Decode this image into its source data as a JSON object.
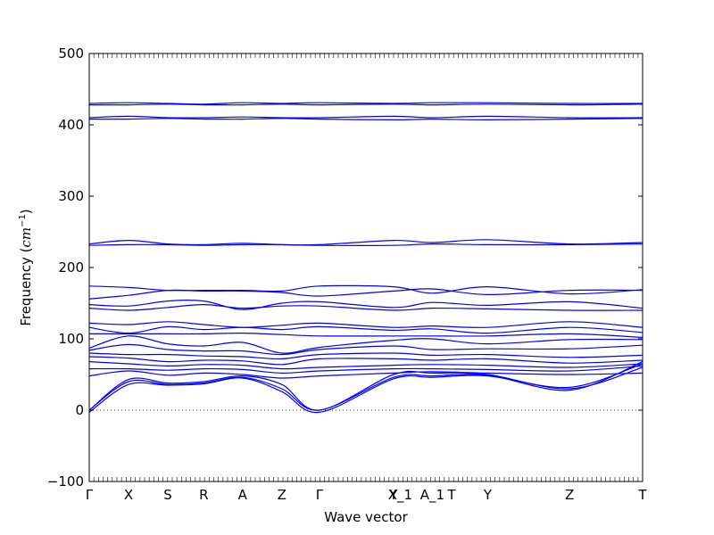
{
  "chart_data": {
    "type": "line",
    "title": "",
    "xlabel": "Wave vector",
    "ylabel": "Frequency (cm⁻¹)",
    "ylabel_main": "Frequency (",
    "ylabel_unit": "cm",
    "ylabel_exp": "−1",
    "ylabel_close": ")",
    "ylim": [
      -100,
      500
    ],
    "yticks": [
      -100,
      0,
      100,
      200,
      300,
      400,
      500
    ],
    "ytick_labels": [
      "−100",
      "0",
      "100",
      "200",
      "300",
      "400",
      "500"
    ],
    "xlim": [
      0,
      1
    ],
    "xticks": [
      {
        "pos": 0.0,
        "label": "Γ"
      },
      {
        "pos": 0.071,
        "label": "X"
      },
      {
        "pos": 0.142,
        "label": "S"
      },
      {
        "pos": 0.207,
        "label": "R"
      },
      {
        "pos": 0.277,
        "label": "A"
      },
      {
        "pos": 0.348,
        "label": "Z"
      },
      {
        "pos": 0.416,
        "label": "Γ"
      },
      {
        "pos": 0.55,
        "label": "Y"
      },
      {
        "pos": 0.562,
        "label": "X_1"
      },
      {
        "pos": 0.62,
        "label": "A_1"
      },
      {
        "pos": 0.655,
        "label": "T"
      },
      {
        "pos": 0.72,
        "label": "Y"
      },
      {
        "pos": 0.868,
        "label": "Z"
      },
      {
        "pos": 1.0,
        "label": "T"
      }
    ],
    "grid": false,
    "zero_line": true,
    "series_color": "#0000ff",
    "series": [
      {
        "x": [
          0,
          0.071,
          0.142,
          0.207,
          0.277,
          0.348,
          0.416,
          0.55,
          0.62,
          0.72,
          0.868,
          1.0
        ],
        "y": [
          430,
          431,
          430,
          429,
          431,
          430,
          431,
          430,
          431,
          431,
          430,
          430
        ]
      },
      {
        "x": [
          0,
          0.071,
          0.142,
          0.207,
          0.277,
          0.348,
          0.416,
          0.55,
          0.62,
          0.72,
          0.868,
          1.0
        ],
        "y": [
          428,
          428,
          429,
          428,
          428,
          429,
          428,
          429,
          428,
          429,
          428,
          429
        ]
      },
      {
        "x": [
          0,
          0.071,
          0.142,
          0.207,
          0.277,
          0.348,
          0.416,
          0.55,
          0.62,
          0.72,
          0.868,
          1.0
        ],
        "y": [
          410,
          412,
          410,
          410,
          411,
          410,
          410,
          412,
          410,
          412,
          410,
          410
        ]
      },
      {
        "x": [
          0,
          0.071,
          0.142,
          0.207,
          0.277,
          0.348,
          0.416,
          0.55,
          0.62,
          0.72,
          0.868,
          1.0
        ],
        "y": [
          408,
          408,
          409,
          408,
          408,
          409,
          408,
          407,
          408,
          407,
          408,
          409
        ]
      },
      {
        "x": [
          0,
          0.071,
          0.142,
          0.207,
          0.277,
          0.348,
          0.416,
          0.55,
          0.62,
          0.72,
          0.868,
          1.0
        ],
        "y": [
          233,
          238,
          233,
          232,
          234,
          232,
          232,
          238,
          235,
          239,
          233,
          235
        ]
      },
      {
        "x": [
          0,
          0.071,
          0.142,
          0.207,
          0.277,
          0.348,
          0.416,
          0.55,
          0.62,
          0.72,
          0.868,
          1.0
        ],
        "y": [
          231,
          232,
          232,
          231,
          232,
          232,
          231,
          231,
          233,
          232,
          232,
          233
        ]
      },
      {
        "x": [
          0,
          0.071,
          0.142,
          0.207,
          0.277,
          0.348,
          0.416,
          0.55,
          0.62,
          0.72,
          0.868,
          1.0
        ],
        "y": [
          174,
          172,
          168,
          168,
          168,
          167,
          174,
          173,
          164,
          173,
          163,
          169
        ]
      },
      {
        "x": [
          0,
          0.071,
          0.142,
          0.207,
          0.277,
          0.348,
          0.416,
          0.55,
          0.62,
          0.72,
          0.868,
          1.0
        ],
        "y": [
          156,
          161,
          168,
          167,
          167,
          165,
          160,
          167,
          170,
          162,
          168,
          168
        ]
      },
      {
        "x": [
          0,
          0.071,
          0.142,
          0.207,
          0.277,
          0.348,
          0.416,
          0.55,
          0.62,
          0.72,
          0.868,
          1.0
        ],
        "y": [
          148,
          146,
          153,
          153,
          141,
          150,
          152,
          144,
          151,
          147,
          152,
          143
        ]
      },
      {
        "x": [
          0,
          0.071,
          0.142,
          0.207,
          0.277,
          0.348,
          0.416,
          0.55,
          0.62,
          0.72,
          0.868,
          1.0
        ],
        "y": [
          143,
          140,
          144,
          148,
          143,
          146,
          146,
          140,
          143,
          142,
          140,
          140
        ]
      },
      {
        "x": [
          0,
          0.071,
          0.142,
          0.207,
          0.277,
          0.348,
          0.416,
          0.55,
          0.62,
          0.72,
          0.868,
          1.0
        ],
        "y": [
          122,
          120,
          124,
          120,
          116,
          119,
          122,
          116,
          118,
          116,
          124,
          116
        ]
      },
      {
        "x": [
          0,
          0.071,
          0.142,
          0.207,
          0.277,
          0.348,
          0.416,
          0.55,
          0.62,
          0.72,
          0.868,
          1.0
        ],
        "y": [
          116,
          108,
          117,
          113,
          116,
          113,
          117,
          112,
          114,
          108,
          116,
          109
        ]
      },
      {
        "x": [
          0,
          0.071,
          0.142,
          0.207,
          0.277,
          0.348,
          0.416,
          0.55,
          0.62,
          0.72,
          0.868,
          1.0
        ],
        "y": [
          107,
          107,
          107,
          107,
          108,
          106,
          104,
          104,
          104,
          104,
          107,
          102
        ]
      },
      {
        "x": [
          0,
          0.071,
          0.142,
          0.207,
          0.277,
          0.348,
          0.416,
          0.55,
          0.62,
          0.72,
          0.868,
          1.0
        ],
        "y": [
          87,
          104,
          93,
          90,
          95,
          80,
          88,
          98,
          100,
          93,
          99,
          99
        ]
      },
      {
        "x": [
          0,
          0.071,
          0.142,
          0.207,
          0.277,
          0.348,
          0.416,
          0.55,
          0.62,
          0.72,
          0.868,
          1.0
        ],
        "y": [
          84,
          92,
          85,
          83,
          83,
          78,
          85,
          90,
          85,
          86,
          86,
          91
        ]
      },
      {
        "x": [
          0,
          0.071,
          0.142,
          0.207,
          0.277,
          0.348,
          0.416,
          0.55,
          0.62,
          0.72,
          0.868,
          1.0
        ],
        "y": [
          80,
          78,
          78,
          76,
          75,
          72,
          78,
          80,
          77,
          78,
          74,
          77
        ]
      },
      {
        "x": [
          0,
          0.071,
          0.142,
          0.207,
          0.277,
          0.348,
          0.416,
          0.55,
          0.62,
          0.72,
          0.868,
          1.0
        ],
        "y": [
          75,
          73,
          68,
          70,
          69,
          64,
          72,
          72,
          70,
          72,
          66,
          70
        ]
      },
      {
        "x": [
          0,
          0.071,
          0.142,
          0.207,
          0.277,
          0.348,
          0.416,
          0.55,
          0.62,
          0.72,
          0.868,
          1.0
        ],
        "y": [
          68,
          65,
          62,
          64,
          63,
          58,
          60,
          63,
          64,
          63,
          60,
          65
        ]
      },
      {
        "x": [
          0,
          0.071,
          0.142,
          0.207,
          0.277,
          0.348,
          0.416,
          0.55,
          0.62,
          0.72,
          0.868,
          1.0
        ],
        "y": [
          58,
          58,
          56,
          58,
          57,
          52,
          55,
          58,
          58,
          57,
          55,
          62
        ]
      },
      {
        "x": [
          0,
          0.071,
          0.142,
          0.207,
          0.277,
          0.348,
          0.416,
          0.55,
          0.62,
          0.72,
          0.868,
          1.0
        ],
        "y": [
          48,
          55,
          49,
          52,
          50,
          45,
          48,
          52,
          54,
          52,
          50,
          52
        ]
      },
      {
        "x": [
          0,
          0.071,
          0.142,
          0.207,
          0.277,
          0.348,
          0.416,
          0.55,
          0.62,
          0.72,
          0.868,
          1.0
        ],
        "y": [
          0,
          43,
          38,
          40,
          48,
          36,
          0,
          50,
          52,
          50,
          30,
          60
        ]
      },
      {
        "x": [
          0,
          0.071,
          0.142,
          0.207,
          0.277,
          0.348,
          0.416,
          0.55,
          0.62,
          0.72,
          0.868,
          1.0
        ],
        "y": [
          0,
          40,
          36,
          38,
          46,
          30,
          0,
          46,
          48,
          49,
          28,
          68
        ]
      },
      {
        "x": [
          0,
          0.071,
          0.142,
          0.207,
          0.277,
          0.348,
          0.416,
          0.55,
          0.62,
          0.72,
          0.868,
          1.0
        ],
        "y": [
          -3,
          36,
          35,
          37,
          45,
          26,
          -3,
          44,
          46,
          48,
          32,
          65
        ]
      }
    ]
  }
}
